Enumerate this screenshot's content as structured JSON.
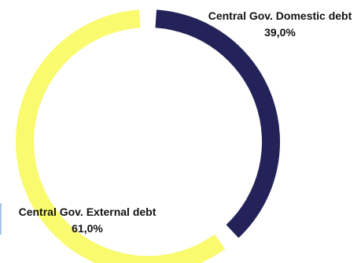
{
  "chart_data": {
    "type": "pie",
    "variant": "donut",
    "title": "",
    "slices": [
      {
        "label": "Central Gov. Domestic debt",
        "value": 39.0,
        "value_label": "39,0%",
        "color": "#23235a"
      },
      {
        "label": "Central Gov. External debt",
        "value": 61.0,
        "value_label": "61,0%",
        "color": "#fafa6e"
      }
    ],
    "legend": "none",
    "data_labels": "outside"
  }
}
